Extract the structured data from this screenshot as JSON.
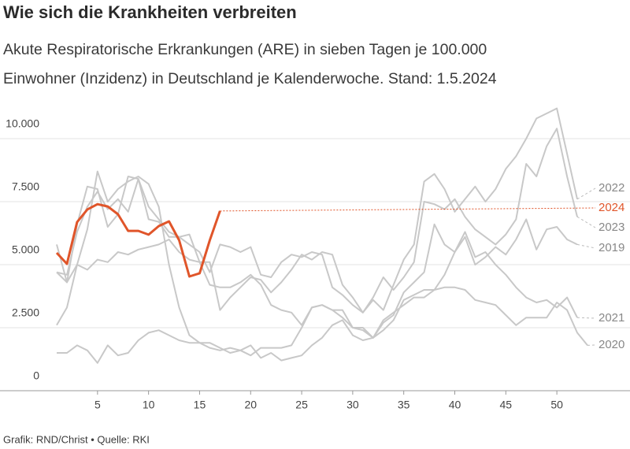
{
  "chart_data": {
    "type": "line",
    "title": "Wie sich die Krankheiten verbreiten",
    "subtitle_lines": [
      "Akute Respiratorische Erkrankungen (ARE) in sieben Tagen je 100.000",
      "Einwohner (Inzidenz) in Deutschland je Kalenderwoche. Stand: 1.5.2024"
    ],
    "source": "Grafik: RND/Christ • Quelle: RKI",
    "x": [
      1,
      2,
      3,
      4,
      5,
      6,
      7,
      8,
      9,
      10,
      11,
      12,
      13,
      14,
      15,
      16,
      17,
      18,
      19,
      20,
      21,
      22,
      23,
      24,
      25,
      26,
      27,
      28,
      29,
      30,
      31,
      32,
      33,
      34,
      35,
      36,
      37,
      38,
      39,
      40,
      41,
      42,
      43,
      44,
      45,
      46,
      47,
      48,
      49,
      50,
      51,
      52,
      53
    ],
    "xlim": [
      1,
      53
    ],
    "xticks": [
      5,
      10,
      15,
      20,
      25,
      30,
      35,
      40,
      45,
      50
    ],
    "ylim": [
      0,
      11500
    ],
    "yticks": [
      0,
      {
        "value": 2500,
        "label": "2.500"
      },
      {
        "value": 5000,
        "label": "5.000"
      },
      {
        "value": 7500,
        "label": "7.500"
      },
      {
        "value": 10000,
        "label": "10.000"
      }
    ],
    "grid": true,
    "series": [
      {
        "name": "2019",
        "color": "#c8c8c8",
        "values": [
          4700,
          4600,
          6300,
          7300,
          7900,
          7200,
          7600,
          7100,
          8400,
          7300,
          6800,
          6300,
          6100,
          6200,
          5100,
          4200,
          4100,
          4100,
          4300,
          4600,
          4200,
          3400,
          3200,
          3100,
          2600,
          3300,
          3400,
          3200,
          2900,
          2500,
          2500,
          2100,
          2700,
          3000,
          3900,
          4300,
          4700,
          6600,
          5800,
          5500,
          6100,
          5000,
          5300,
          5700,
          5400,
          6000,
          6800,
          5600,
          6400,
          6500,
          6000,
          5800,
          null
        ]
      },
      {
        "name": "2020",
        "color": "#c8c8c8",
        "values": [
          2600,
          3300,
          5000,
          6400,
          8700,
          7500,
          8000,
          8300,
          8500,
          8200,
          7300,
          5000,
          3300,
          2200,
          1900,
          1700,
          1600,
          1700,
          1600,
          1800,
          1300,
          1500,
          1200,
          1300,
          1400,
          1800,
          2100,
          2600,
          2800,
          2200,
          2000,
          2100,
          2400,
          2800,
          3600,
          3800,
          4000,
          4000,
          4100,
          4100,
          4000,
          3600,
          3500,
          3400,
          3000,
          2600,
          2900,
          2900,
          2900,
          3500,
          3200,
          2300,
          1800
        ]
      },
      {
        "name": "2021",
        "color": "#c8c8c8",
        "values": [
          1500,
          1500,
          1800,
          1600,
          1100,
          1800,
          1400,
          1500,
          2000,
          2300,
          2400,
          2200,
          2000,
          1900,
          1900,
          1900,
          1700,
          1500,
          1600,
          1400,
          1700,
          1700,
          1700,
          1800,
          2500,
          3300,
          3400,
          3200,
          3200,
          2500,
          2400,
          2100,
          2800,
          3100,
          3400,
          3700,
          3700,
          4000,
          4600,
          5500,
          6300,
          5300,
          5500,
          5000,
          4600,
          4100,
          3700,
          3500,
          3600,
          3300,
          3700,
          2900,
          null
        ]
      },
      {
        "name": "2022",
        "color": "#c8c8c8",
        "values": [
          4700,
          4300,
          5000,
          4800,
          5200,
          5100,
          5500,
          5400,
          5600,
          5700,
          5800,
          6000,
          5500,
          5200,
          5100,
          5100,
          3200,
          3700,
          4100,
          4500,
          4400,
          3900,
          4300,
          4800,
          5400,
          5200,
          5500,
          5400,
          4200,
          3700,
          3100,
          3600,
          3200,
          4200,
          5200,
          5800,
          8300,
          8600,
          8000,
          7100,
          7600,
          8100,
          7500,
          8000,
          8800,
          9300,
          10000,
          10800,
          11000,
          11200,
          9400,
          7600,
          null
        ]
      },
      {
        "name": "2023",
        "color": "#c8c8c8",
        "values": [
          5800,
          4300,
          6600,
          8100,
          8000,
          6500,
          7000,
          8500,
          8400,
          6800,
          6700,
          6100,
          6100,
          5800,
          5500,
          4700,
          5800,
          5700,
          5500,
          5700,
          4600,
          4500,
          5100,
          5400,
          5300,
          5500,
          5400,
          4100,
          3800,
          3400,
          3100,
          3700,
          4500,
          4000,
          4500,
          5100,
          7500,
          7400,
          7200,
          7600,
          6900,
          6400,
          6100,
          5800,
          6200,
          6800,
          9000,
          8500,
          9700,
          10400,
          8500,
          6900,
          null
        ]
      },
      {
        "name": "2024",
        "color": "#e0552a",
        "values": [
          5470,
          5030,
          6690,
          7190,
          7400,
          7310,
          7000,
          6340,
          6340,
          6190,
          6530,
          6720,
          5970,
          4530,
          4660,
          5970,
          7130,
          null,
          null,
          null,
          null,
          null,
          null,
          null,
          null,
          null,
          null,
          null,
          null,
          null,
          null,
          null,
          null,
          null,
          null,
          null,
          null,
          null,
          null,
          null,
          null,
          null,
          null,
          null,
          null,
          null,
          null,
          null,
          null,
          null,
          null,
          null,
          null
        ]
      }
    ]
  }
}
